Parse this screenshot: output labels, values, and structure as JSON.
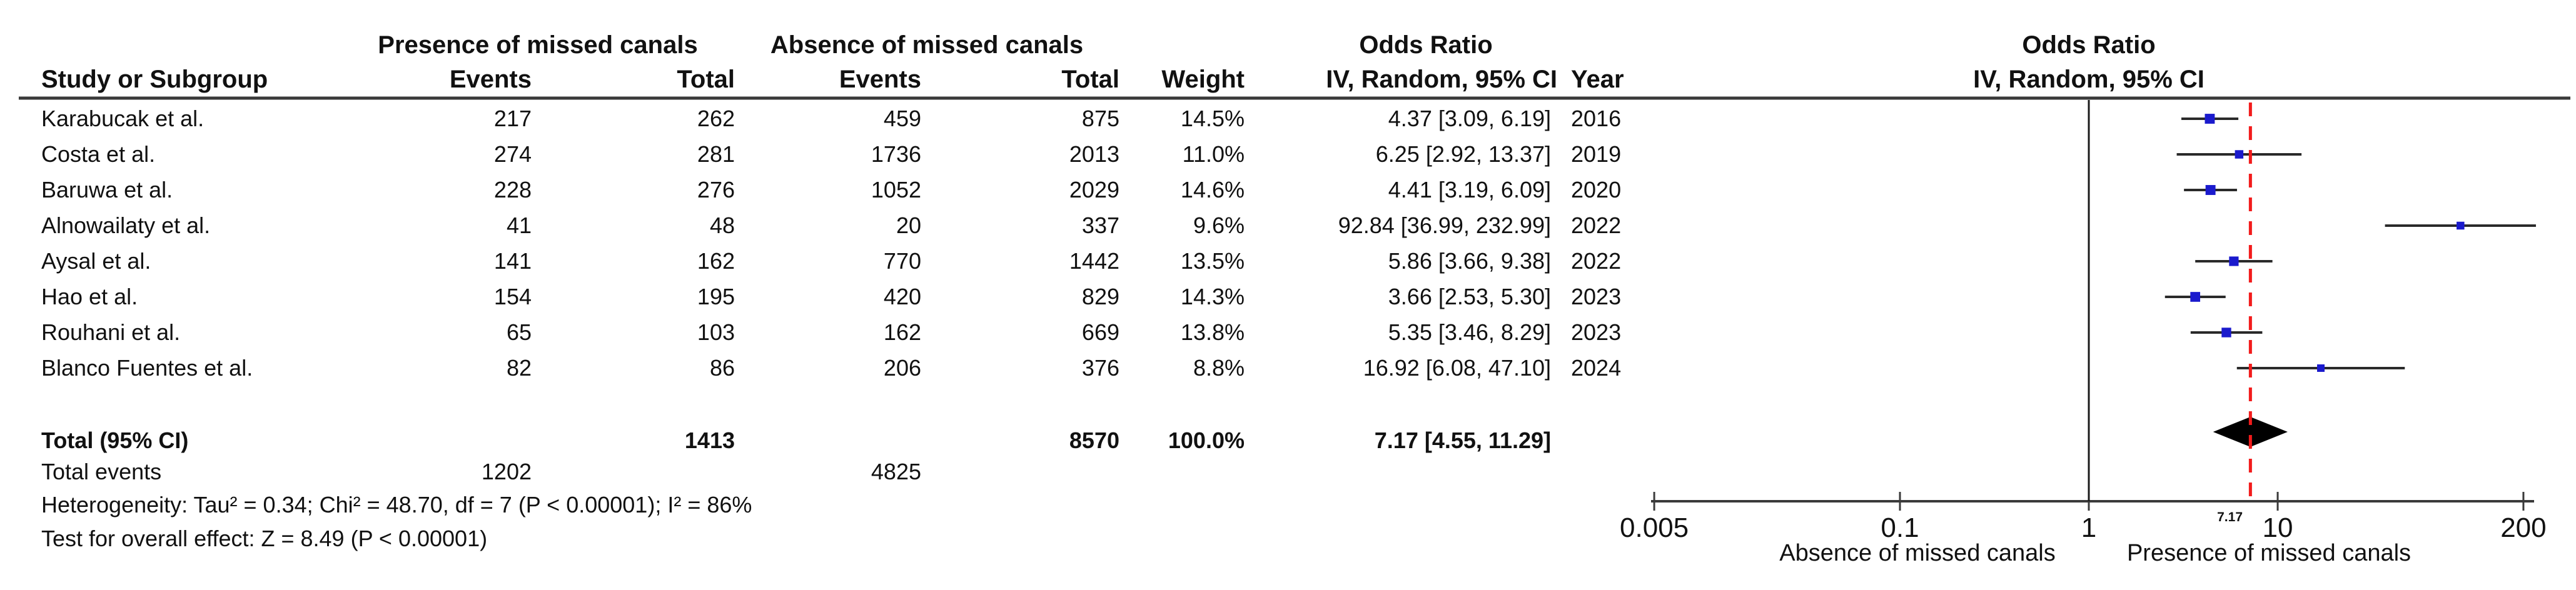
{
  "header": {
    "col_study": "Study or Subgroup",
    "group_presence": "Presence of missed canals",
    "group_absence": "Absence of missed canals",
    "group_odds_ratio": "Odds Ratio",
    "col_events": "Events",
    "col_total": "Total",
    "col_weight": "Weight",
    "col_method": "IV, Random, 95% CI",
    "col_year": "Year",
    "right_title": "Odds Ratio",
    "right_subtitle": "IV, Random, 95% CI"
  },
  "chart_data": {
    "type": "forest",
    "x_scale": "log",
    "axis_ticks": [
      0.005,
      0.1,
      1,
      10,
      200
    ],
    "axis_tick_labels": [
      "0.005",
      "0.1",
      "1",
      "10",
      "200"
    ],
    "axis_range": [
      0.005,
      200
    ],
    "null_line": 1,
    "pooled_line": 7.17,
    "pooled_line_label": "7.17",
    "axis_label_left": "Absence of missed canals",
    "axis_label_right": "Presence of missed canals",
    "studies": [
      {
        "name": "Karabucak et al.",
        "events1": 217,
        "total1": 262,
        "events2": 459,
        "total2": 875,
        "weight": "14.5%",
        "weight_pct": 14.5,
        "or": 4.37,
        "ci_lo": 3.09,
        "ci_hi": 6.19,
        "or_text": "4.37 [3.09, 6.19]",
        "year": 2016
      },
      {
        "name": "Costa et al.",
        "events1": 274,
        "total1": 281,
        "events2": 1736,
        "total2": 2013,
        "weight": "11.0%",
        "weight_pct": 11.0,
        "or": 6.25,
        "ci_lo": 2.92,
        "ci_hi": 13.37,
        "or_text": "6.25 [2.92, 13.37]",
        "year": 2019
      },
      {
        "name": "Baruwa et al.",
        "events1": 228,
        "total1": 276,
        "events2": 1052,
        "total2": 2029,
        "weight": "14.6%",
        "weight_pct": 14.6,
        "or": 4.41,
        "ci_lo": 3.19,
        "ci_hi": 6.09,
        "or_text": "4.41 [3.19, 6.09]",
        "year": 2020
      },
      {
        "name": "Alnowailaty et al.",
        "events1": 41,
        "total1": 48,
        "events2": 20,
        "total2": 337,
        "weight": "9.6%",
        "weight_pct": 9.6,
        "or": 92.84,
        "ci_lo": 36.99,
        "ci_hi": 232.99,
        "or_text": "92.84 [36.99, 232.99]",
        "year": 2022
      },
      {
        "name": "Aysal et al.",
        "events1": 141,
        "total1": 162,
        "events2": 770,
        "total2": 1442,
        "weight": "13.5%",
        "weight_pct": 13.5,
        "or": 5.86,
        "ci_lo": 3.66,
        "ci_hi": 9.38,
        "or_text": "5.86 [3.66, 9.38]",
        "year": 2022
      },
      {
        "name": "Hao et al.",
        "events1": 154,
        "total1": 195,
        "events2": 420,
        "total2": 829,
        "weight": "14.3%",
        "weight_pct": 14.3,
        "or": 3.66,
        "ci_lo": 2.53,
        "ci_hi": 5.3,
        "or_text": "3.66 [2.53, 5.30]",
        "year": 2023
      },
      {
        "name": "Rouhani et al.",
        "events1": 65,
        "total1": 103,
        "events2": 162,
        "total2": 669,
        "weight": "13.8%",
        "weight_pct": 13.8,
        "or": 5.35,
        "ci_lo": 3.46,
        "ci_hi": 8.29,
        "or_text": "5.35 [3.46, 8.29]",
        "year": 2023
      },
      {
        "name": "Blanco Fuentes et al.",
        "events1": 82,
        "total1": 86,
        "events2": 206,
        "total2": 376,
        "weight": "8.8%",
        "weight_pct": 8.8,
        "or": 16.92,
        "ci_lo": 6.08,
        "ci_hi": 47.1,
        "or_text": "16.92 [6.08, 47.10]",
        "year": 2024
      }
    ],
    "total": {
      "label": "Total (95% CI)",
      "total1": 1413,
      "total2": 8570,
      "weight": "100.0%",
      "or": 7.17,
      "ci_lo": 4.55,
      "ci_hi": 11.29,
      "or_text": "7.17 [4.55, 11.29]"
    },
    "total_events": {
      "label": "Total events",
      "events1": 1202,
      "events2": 4825
    },
    "heterogeneity": "Heterogeneity: Tau² = 0.34; Chi² = 48.70, df = 7 (P < 0.00001); I² = 86%",
    "overall_effect": "Test for overall effect: Z = 8.49 (P < 0.00001)",
    "colors": {
      "square": "#1a1acd",
      "ci_line": "#2a2a2a",
      "diamond": "#000000",
      "red_line": "#f21b1b",
      "rule": "#3a3a3a",
      "text": "#111111"
    }
  }
}
